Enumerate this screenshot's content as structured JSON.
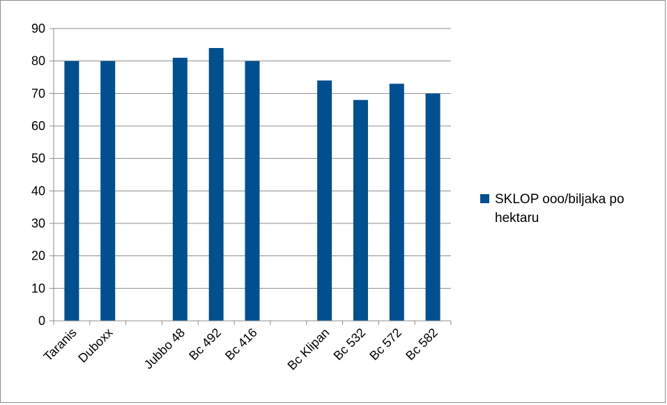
{
  "chart_data": {
    "type": "bar",
    "categories": [
      "Taranis",
      "Duboxx",
      "",
      "Jubbo 48",
      "Bc 492",
      "Bc 416",
      "",
      "Bc Klipan",
      "Bc 532",
      "Bc 572",
      "Bc 582"
    ],
    "series": [
      {
        "name": "SKLOP ooo/biljaka po hektaru",
        "values": [
          80,
          80,
          null,
          81,
          84,
          80,
          null,
          74,
          68,
          73,
          70
        ],
        "color": "#004f8f"
      }
    ],
    "yticks": [
      0,
      10,
      20,
      30,
      40,
      50,
      60,
      70,
      80,
      90
    ],
    "ylim": [
      0,
      90
    ],
    "title": "",
    "xlabel": "",
    "ylabel": "",
    "grid": true,
    "legend_position": "right"
  }
}
